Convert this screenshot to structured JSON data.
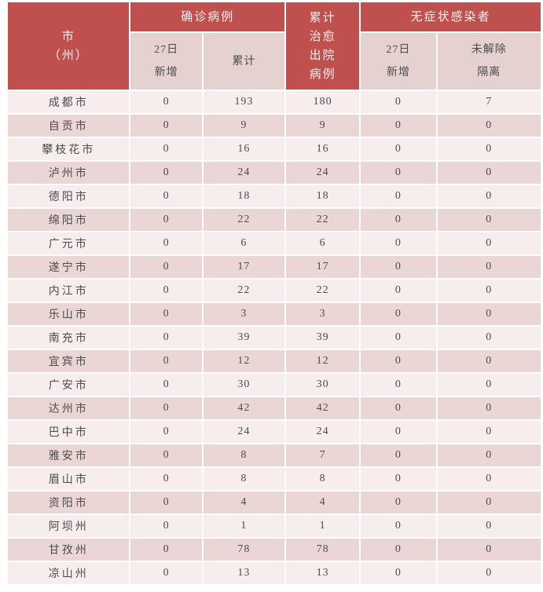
{
  "colors": {
    "header_red": "#c0504d",
    "subheader_pink": "#e5d2d0",
    "row_light": "#f7edec",
    "row_dark": "#ead6d4",
    "header_text": "#f9f1f0",
    "body_text": "#4c4c4c"
  },
  "header": {
    "city": "市\n（州）",
    "confirmed_group": "确诊病例",
    "cured": "累计\n治愈\n出院\n病例",
    "asymptomatic_group": "无症状感染者",
    "sub_new_confirmed": "27日\n新增",
    "sub_total_confirmed": "累计",
    "sub_new_asymptomatic": "27日\n新增",
    "sub_not_released": "未解除\n隔离"
  },
  "chart_data": {
    "type": "table",
    "column_groups": [
      {
        "label": "市（州）",
        "span": 1
      },
      {
        "label": "确诊病例",
        "span": 2
      },
      {
        "label": "累计治愈出院病例",
        "span": 1
      },
      {
        "label": "无症状感染者",
        "span": 2
      }
    ],
    "columns": [
      "市（州）",
      "确诊病例 27日新增",
      "确诊病例 累计",
      "累计治愈出院病例",
      "无症状感染者 27日新增",
      "无症状感染者 未解除隔离"
    ],
    "rows": [
      [
        "成都市",
        "0",
        "193",
        "180",
        "0",
        "7"
      ],
      [
        "自贡市",
        "0",
        "9",
        "9",
        "0",
        "0"
      ],
      [
        "攀枝花市",
        "0",
        "16",
        "16",
        "0",
        "0"
      ],
      [
        "泸州市",
        "0",
        "24",
        "24",
        "0",
        "0"
      ],
      [
        "德阳市",
        "0",
        "18",
        "18",
        "0",
        "0"
      ],
      [
        "绵阳市",
        "0",
        "22",
        "22",
        "0",
        "0"
      ],
      [
        "广元市",
        "0",
        "6",
        "6",
        "0",
        "0"
      ],
      [
        "遂宁市",
        "0",
        "17",
        "17",
        "0",
        "0"
      ],
      [
        "内江市",
        "0",
        "22",
        "22",
        "0",
        "0"
      ],
      [
        "乐山市",
        "0",
        "3",
        "3",
        "0",
        "0"
      ],
      [
        "南充市",
        "0",
        "39",
        "39",
        "0",
        "0"
      ],
      [
        "宜宾市",
        "0",
        "12",
        "12",
        "0",
        "0"
      ],
      [
        "广安市",
        "0",
        "30",
        "30",
        "0",
        "0"
      ],
      [
        "达州市",
        "0",
        "42",
        "42",
        "0",
        "0"
      ],
      [
        "巴中市",
        "0",
        "24",
        "24",
        "0",
        "0"
      ],
      [
        "雅安市",
        "0",
        "8",
        "7",
        "0",
        "0"
      ],
      [
        "眉山市",
        "0",
        "8",
        "8",
        "0",
        "0"
      ],
      [
        "资阳市",
        "0",
        "4",
        "4",
        "0",
        "0"
      ],
      [
        "阿坝州",
        "0",
        "1",
        "1",
        "0",
        "0"
      ],
      [
        "甘孜州",
        "0",
        "78",
        "78",
        "0",
        "0"
      ],
      [
        "凉山州",
        "0",
        "13",
        "13",
        "0",
        "0"
      ]
    ]
  }
}
